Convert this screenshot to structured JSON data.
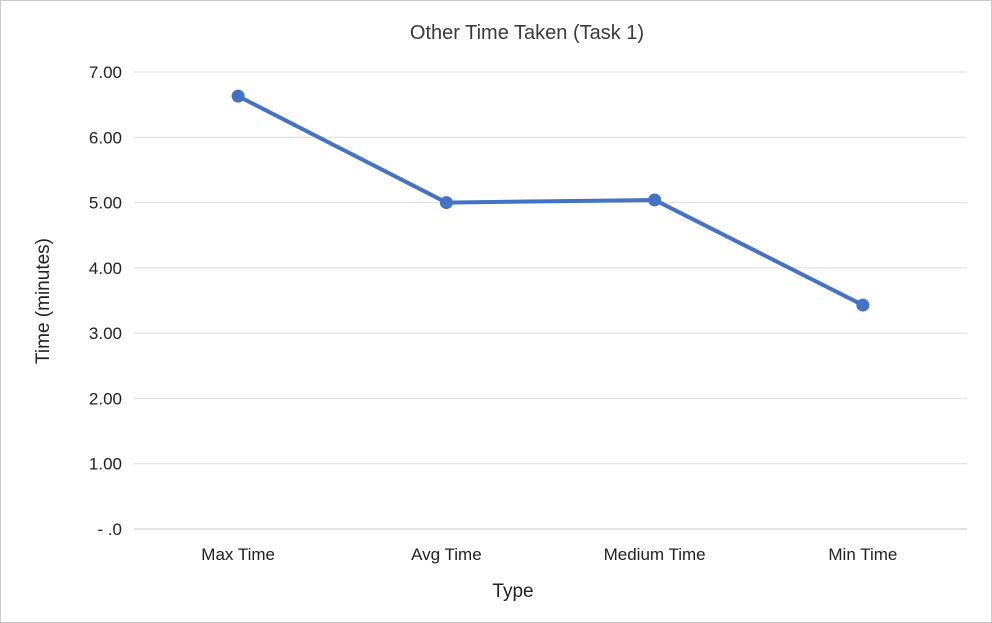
{
  "chart_data": {
    "type": "line",
    "title": "Other Time Taken (Task 1)",
    "xlabel": "Type",
    "ylabel": "Time (minutes)",
    "categories": [
      "Max Time",
      "Avg Time",
      "Medium Time",
      "Min Time"
    ],
    "series": [
      {
        "values": [
          6.63,
          5.0,
          5.04,
          3.43
        ],
        "color": "#4472c4"
      }
    ],
    "ylim": [
      0,
      7
    ],
    "yticks": [
      0,
      1,
      2,
      3,
      4,
      5,
      6,
      7
    ],
    "ytick_labels": [
      "-  .0",
      "1.00",
      "2.00",
      "3.00",
      "4.00",
      "5.00",
      "6.00",
      "7.00"
    ],
    "grid": true,
    "legend": "none"
  }
}
